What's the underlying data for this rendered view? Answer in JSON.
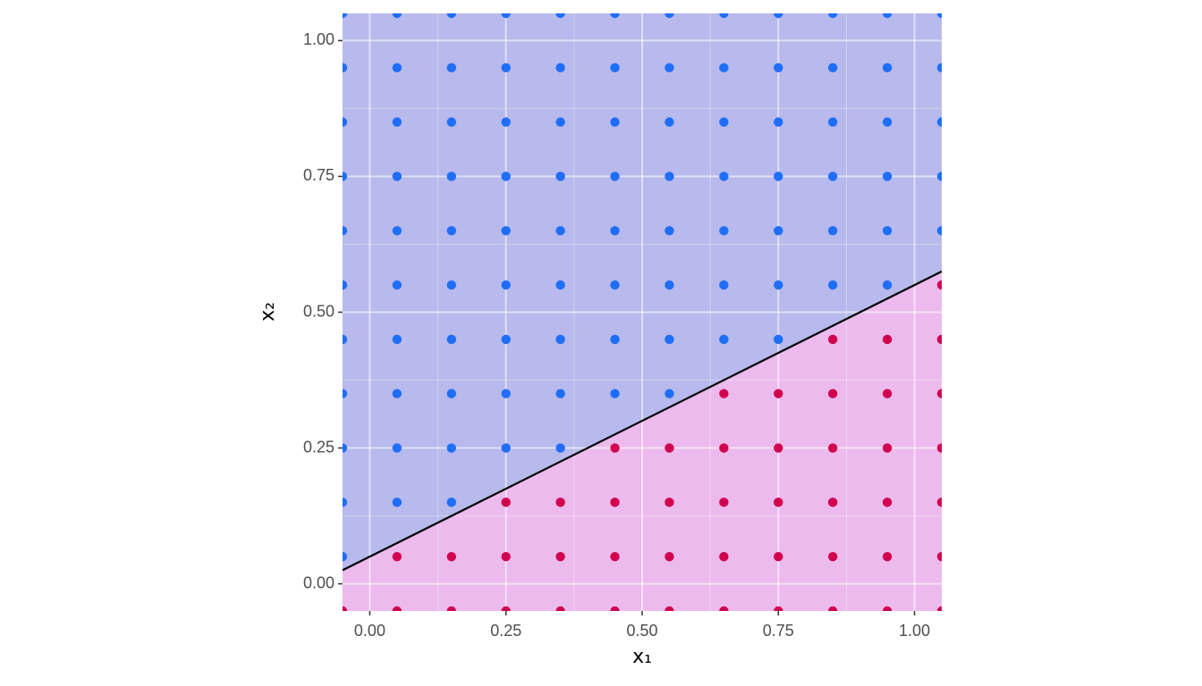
{
  "chart_data": {
    "type": "scatter",
    "xlabel": "x₁",
    "ylabel": "x₂",
    "xlim": [
      -0.05,
      1.05
    ],
    "ylim": [
      -0.05,
      1.05
    ],
    "xticks": [
      {
        "value": 0,
        "label": "0.00"
      },
      {
        "value": 0.25,
        "label": "0.25"
      },
      {
        "value": 0.5,
        "label": "0.50"
      },
      {
        "value": 0.75,
        "label": "0.75"
      },
      {
        "value": 1,
        "label": "1.00"
      }
    ],
    "yticks": [
      {
        "value": 0,
        "label": "0.00"
      },
      {
        "value": 0.25,
        "label": "0.25"
      },
      {
        "value": 0.5,
        "label": "0.50"
      },
      {
        "value": 0.75,
        "label": "0.75"
      },
      {
        "value": 1,
        "label": "1.00"
      }
    ],
    "xminor_ticks": [
      0.125,
      0.375,
      0.625,
      0.875
    ],
    "yminor_ticks": [
      0.125,
      0.375,
      0.625,
      0.875
    ],
    "grid": true,
    "region_colors": {
      "above": "#b8b9ec",
      "below": "#ecbaec"
    },
    "boundary": {
      "color": "#000000",
      "x": [
        -0.05,
        1.05
      ],
      "values": [
        0.025,
        0.575
      ]
    },
    "series": [
      {
        "color": "#1f6ef7",
        "x": [
          -0.05,
          -0.05,
          0.05,
          0.15,
          -0.05,
          0.05,
          0.15,
          0.25,
          0.35,
          -0.05,
          0.05,
          0.15,
          0.25,
          0.35,
          0.45,
          0.55,
          -0.05,
          0.05,
          0.15,
          0.25,
          0.35,
          0.45,
          0.55,
          0.65,
          0.75,
          -0.05,
          0.05,
          0.15,
          0.25,
          0.35,
          0.45,
          0.55,
          0.65,
          0.75,
          0.85,
          0.95,
          -0.05,
          0.05,
          0.15,
          0.25,
          0.35,
          0.45,
          0.55,
          0.65,
          0.75,
          0.85,
          0.95,
          1.05,
          -0.05,
          0.05,
          0.15,
          0.25,
          0.35,
          0.45,
          0.55,
          0.65,
          0.75,
          0.85,
          0.95,
          1.05,
          -0.05,
          0.05,
          0.15,
          0.25,
          0.35,
          0.45,
          0.55,
          0.65,
          0.75,
          0.85,
          0.95,
          1.05,
          -0.05,
          0.05,
          0.15,
          0.25,
          0.35,
          0.45,
          0.55,
          0.65,
          0.75,
          0.85,
          0.95,
          1.05,
          -0.05,
          0.05,
          0.15,
          0.25,
          0.35,
          0.45,
          0.55,
          0.65,
          0.75,
          0.85,
          0.95,
          1.05
        ],
        "values": [
          0.05,
          0.15,
          0.15,
          0.15,
          0.25,
          0.25,
          0.25,
          0.25,
          0.25,
          0.35,
          0.35,
          0.35,
          0.35,
          0.35,
          0.35,
          0.35,
          0.45,
          0.45,
          0.45,
          0.45,
          0.45,
          0.45,
          0.45,
          0.45,
          0.45,
          0.55,
          0.55,
          0.55,
          0.55,
          0.55,
          0.55,
          0.55,
          0.55,
          0.55,
          0.55,
          0.55,
          0.65,
          0.65,
          0.65,
          0.65,
          0.65,
          0.65,
          0.65,
          0.65,
          0.65,
          0.65,
          0.65,
          0.65,
          0.75,
          0.75,
          0.75,
          0.75,
          0.75,
          0.75,
          0.75,
          0.75,
          0.75,
          0.75,
          0.75,
          0.75,
          0.85,
          0.85,
          0.85,
          0.85,
          0.85,
          0.85,
          0.85,
          0.85,
          0.85,
          0.85,
          0.85,
          0.85,
          0.95,
          0.95,
          0.95,
          0.95,
          0.95,
          0.95,
          0.95,
          0.95,
          0.95,
          0.95,
          0.95,
          0.95,
          1.05,
          1.05,
          1.05,
          1.05,
          1.05,
          1.05,
          1.05,
          1.05,
          1.05,
          1.05,
          1.05,
          1.05
        ]
      },
      {
        "color": "#d1004f",
        "x": [
          -0.05,
          0.05,
          0.15,
          0.25,
          0.35,
          0.45,
          0.55,
          0.65,
          0.75,
          0.85,
          0.95,
          1.05,
          0.05,
          0.15,
          0.25,
          0.35,
          0.45,
          0.55,
          0.65,
          0.75,
          0.85,
          0.95,
          1.05,
          0.25,
          0.35,
          0.45,
          0.55,
          0.65,
          0.75,
          0.85,
          0.95,
          1.05,
          0.45,
          0.55,
          0.65,
          0.75,
          0.85,
          0.95,
          1.05,
          0.65,
          0.75,
          0.85,
          0.95,
          1.05,
          0.85,
          0.95,
          1.05,
          1.05
        ],
        "values": [
          -0.05,
          -0.05,
          -0.05,
          -0.05,
          -0.05,
          -0.05,
          -0.05,
          -0.05,
          -0.05,
          -0.05,
          -0.05,
          -0.05,
          0.05,
          0.05,
          0.05,
          0.05,
          0.05,
          0.05,
          0.05,
          0.05,
          0.05,
          0.05,
          0.05,
          0.15,
          0.15,
          0.15,
          0.15,
          0.15,
          0.15,
          0.15,
          0.15,
          0.15,
          0.25,
          0.25,
          0.25,
          0.25,
          0.25,
          0.25,
          0.25,
          0.35,
          0.35,
          0.35,
          0.35,
          0.35,
          0.45,
          0.45,
          0.45,
          0.55
        ]
      }
    ]
  }
}
